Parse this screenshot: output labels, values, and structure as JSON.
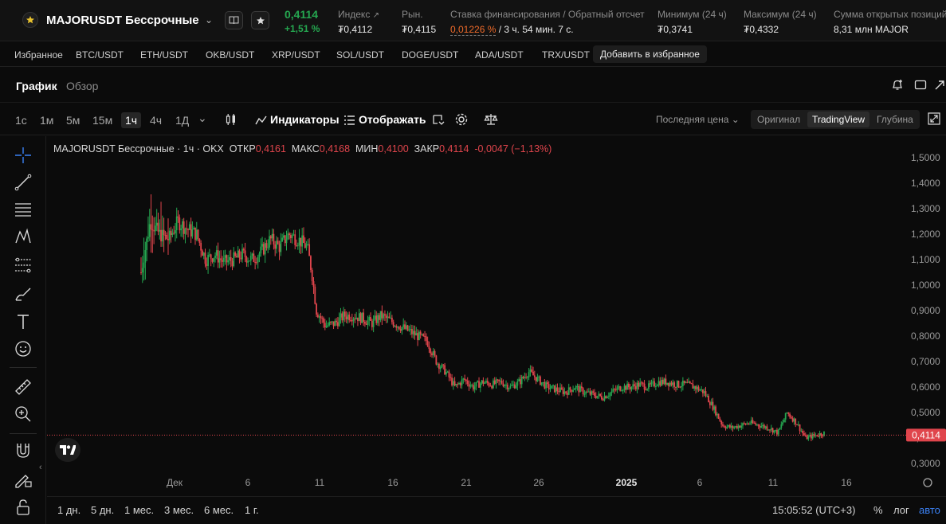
{
  "ticker": {
    "name": "MAJORUSDT Бессрочные",
    "price": "0,4114",
    "change": "+1,51 %",
    "stats": [
      {
        "label": "Индекс",
        "value": "₮0,4112"
      },
      {
        "label": "Рын.",
        "value": "₮0,4115"
      },
      {
        "label": "Ставка финансирования / Обратный отсчет",
        "value_red": "0,01226 %",
        "value_rest": " / 3 ч. 54 мин. 7 с."
      },
      {
        "label": "Минимум (24 ч)",
        "value": "₮0,3741"
      },
      {
        "label": "Максимум (24 ч)",
        "value": "₮0,4332"
      },
      {
        "label": "Сумма открытых позиций",
        "value": "8,31 млн MAJOR"
      }
    ]
  },
  "favorites": {
    "label": "Избранное",
    "items": [
      "BTC/USDT",
      "ETH/USDT",
      "OKB/USDT",
      "XRP/USDT",
      "SOL/USDT",
      "DOGE/USDT",
      "ADA/USDT",
      "TRX/USDT"
    ],
    "add_label": "Добавить в избранное"
  },
  "tabs": {
    "chart": "График",
    "overview": "Обзор"
  },
  "toolbar": {
    "timeframes": [
      "1с",
      "1м",
      "5м",
      "15м",
      "1ч",
      "4ч",
      "1Д"
    ],
    "active_timeframe": "1ч",
    "indicators": "Индикаторы",
    "display": "Отображать",
    "last_price": "Последняя цена",
    "views": [
      "Оригинал",
      "TradingView",
      "Глубина"
    ],
    "active_view": "TradingView"
  },
  "legend": {
    "title": "MAJORUSDT Бессрочные · 1ч · OKX",
    "open_label": "ОТКР",
    "open": "0,4161",
    "high_label": "МАКС",
    "high": "0,4168",
    "low_label": "МИН",
    "low": "0,4100",
    "close_label": "ЗАКР",
    "close": "0,4114",
    "change": "-0,0047 (−1,13%)"
  },
  "bottom": {
    "ranges": [
      "1 дн.",
      "5 дн.",
      "1 мес.",
      "3 мес.",
      "6 мес.",
      "1 г."
    ],
    "clock": "15:05:52 (UTC+3)",
    "percent": "%",
    "log": "лог",
    "auto": "авто"
  },
  "colors": {
    "up": "#25a750",
    "down": "#e0454c",
    "accent": "#3b82f6"
  },
  "chart_data": {
    "type": "candlestick",
    "price_axis": [
      "1,5000",
      "1,4000",
      "1,3000",
      "1,2000",
      "1,1000",
      "1,0000",
      "0,9000",
      "0,8000",
      "0,7000",
      "0,6000",
      "0,5000",
      "0,4000",
      "0,3000"
    ],
    "time_axis": [
      "Дек",
      "6",
      "11",
      "16",
      "21",
      "26",
      "2025",
      "6",
      "11",
      "16"
    ],
    "last_price_label": "0,4114",
    "ylim": [
      0.28,
      1.53
    ],
    "close_path": [
      [
        0,
        1.05
      ],
      [
        1,
        1.25
      ],
      [
        2,
        1.2
      ],
      [
        3,
        1.18
      ],
      [
        4,
        1.25
      ],
      [
        5,
        1.22
      ],
      [
        6,
        1.2
      ],
      [
        7,
        1.1
      ],
      [
        8,
        1.12
      ],
      [
        9,
        1.09
      ],
      [
        10,
        1.1
      ],
      [
        11,
        1.12
      ],
      [
        12,
        1.1
      ],
      [
        13,
        1.13
      ],
      [
        14,
        1.18
      ],
      [
        15,
        1.15
      ],
      [
        16,
        1.2
      ],
      [
        17,
        1.18
      ],
      [
        18,
        1.15
      ],
      [
        18.5,
        1.05
      ],
      [
        19,
        0.9
      ],
      [
        20,
        0.84
      ],
      [
        21,
        0.85
      ],
      [
        22,
        0.88
      ],
      [
        23,
        0.88
      ],
      [
        24,
        0.87
      ],
      [
        25,
        0.85
      ],
      [
        26,
        0.88
      ],
      [
        27,
        0.86
      ],
      [
        28,
        0.84
      ],
      [
        29,
        0.82
      ],
      [
        30,
        0.8
      ],
      [
        31,
        0.78
      ],
      [
        32,
        0.7
      ],
      [
        33,
        0.66
      ],
      [
        34,
        0.6
      ],
      [
        35,
        0.63
      ],
      [
        36,
        0.6
      ],
      [
        37,
        0.62
      ],
      [
        38,
        0.61
      ],
      [
        39,
        0.62
      ],
      [
        40,
        0.6
      ],
      [
        41,
        0.62
      ],
      [
        42,
        0.66
      ],
      [
        43,
        0.63
      ],
      [
        44,
        0.6
      ],
      [
        45,
        0.59
      ],
      [
        46,
        0.58
      ],
      [
        47,
        0.6
      ],
      [
        48,
        0.58
      ],
      [
        49,
        0.57
      ],
      [
        50,
        0.56
      ],
      [
        51,
        0.58
      ],
      [
        52,
        0.6
      ],
      [
        53,
        0.6
      ],
      [
        54,
        0.61
      ],
      [
        55,
        0.6
      ],
      [
        56,
        0.62
      ],
      [
        57,
        0.62
      ],
      [
        58,
        0.61
      ],
      [
        59,
        0.61
      ],
      [
        60,
        0.6
      ],
      [
        61,
        0.58
      ],
      [
        62,
        0.52
      ],
      [
        63,
        0.45
      ],
      [
        64,
        0.44
      ],
      [
        65,
        0.45
      ],
      [
        66,
        0.46
      ],
      [
        67,
        0.45
      ],
      [
        68,
        0.44
      ],
      [
        69,
        0.42
      ],
      [
        70,
        0.5
      ],
      [
        71,
        0.46
      ],
      [
        72,
        0.4
      ],
      [
        73,
        0.41
      ],
      [
        74,
        0.42
      ]
    ]
  }
}
